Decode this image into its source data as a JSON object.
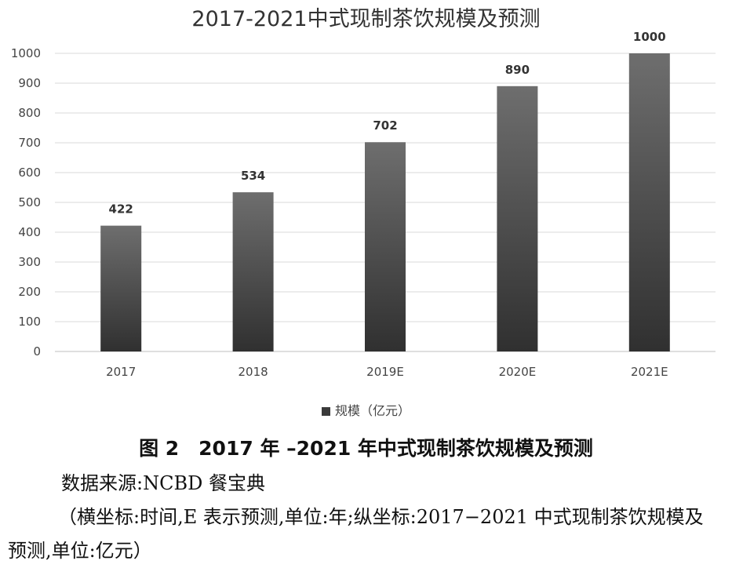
{
  "chart_data": {
    "type": "bar",
    "title": "2017-2021中式现制茶饮规模及预测",
    "categories": [
      "2017",
      "2018",
      "2019E",
      "2020E",
      "2021E"
    ],
    "series": [
      {
        "name": "规模（亿元）",
        "values": [
          422,
          534,
          702,
          890,
          1000
        ]
      }
    ],
    "data_labels": [
      "422",
      "534",
      "702",
      "890",
      "1000"
    ],
    "ylim": [
      0,
      1000
    ],
    "yticks": [
      0,
      100,
      200,
      300,
      400,
      500,
      600,
      700,
      800,
      900,
      1000
    ],
    "grid": true,
    "legend_position": "bottom",
    "bar_color": "#4a4a4a"
  },
  "caption": {
    "figure": "图 2　2017 年 –2021 年中式现制茶饮规模及预测",
    "source": "数据来源:NCBD 餐宝典",
    "note": "（横坐标:时间,E 表示预测,单位:年;纵坐标:2017−2021 中式现制茶饮规模及预测,单位:亿元）"
  }
}
